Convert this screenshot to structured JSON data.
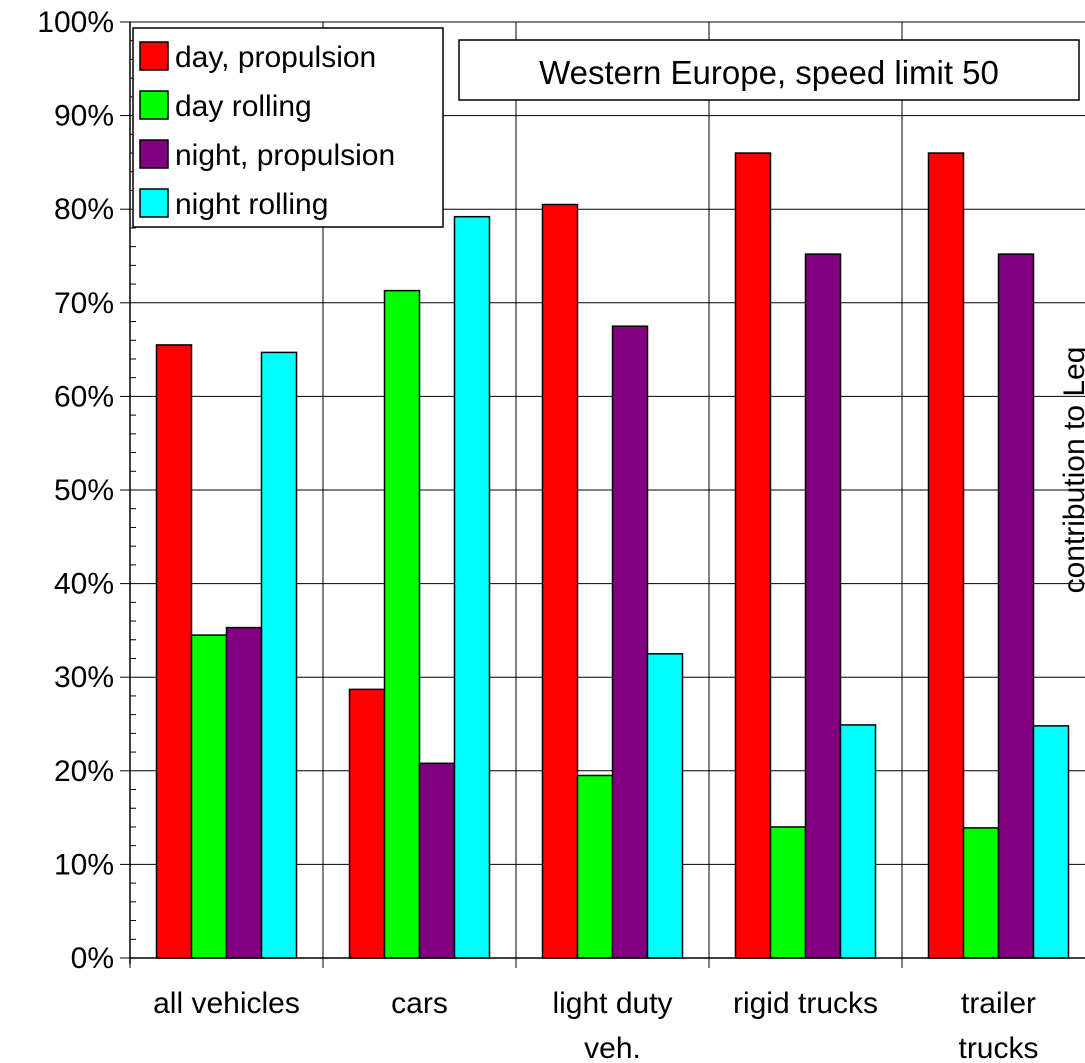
{
  "chart_data": {
    "type": "bar",
    "title": "Western Europe, speed limit 50",
    "ylabel": "contribution to Leq",
    "xlabel": "",
    "ylim": [
      0,
      100
    ],
    "y_tick_step": 10,
    "y_ticks": [
      "0%",
      "10%",
      "20%",
      "30%",
      "40%",
      "50%",
      "60%",
      "70%",
      "80%",
      "90%",
      "100%"
    ],
    "grid": true,
    "legend_position": "top-left",
    "categories": [
      [
        "all vehicles"
      ],
      [
        "cars"
      ],
      [
        "light duty",
        "veh."
      ],
      [
        "rigid trucks"
      ],
      [
        "trailer",
        "trucks"
      ]
    ],
    "series": [
      {
        "name": "day, propulsion",
        "color": "#ff0000",
        "values": [
          65.5,
          28.7,
          80.5,
          86.0,
          86.0
        ]
      },
      {
        "name": "day rolling",
        "color": "#00ff00",
        "values": [
          34.5,
          71.3,
          19.5,
          14.0,
          13.9
        ]
      },
      {
        "name": "night, propulsion",
        "color": "#800080",
        "values": [
          35.3,
          20.8,
          67.5,
          75.2,
          75.2
        ]
      },
      {
        "name": "night rolling",
        "color": "#00ffff",
        "values": [
          64.7,
          79.2,
          32.5,
          24.9,
          24.8
        ]
      }
    ]
  }
}
